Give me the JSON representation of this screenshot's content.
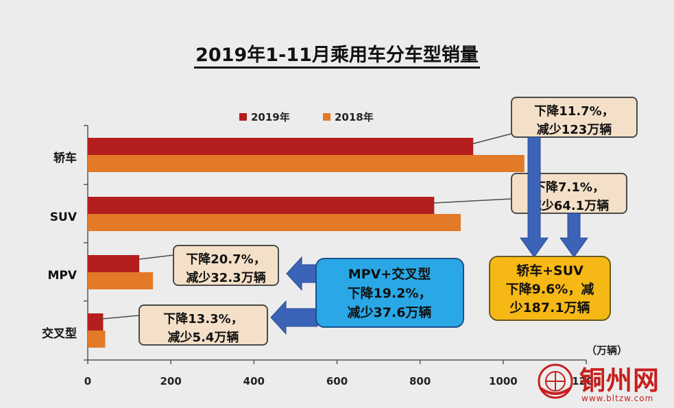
{
  "chart_data": {
    "type": "bar",
    "orientation": "horizontal",
    "title": "2019年1-11月乘用车分车型销量",
    "unit_label": "（万辆）",
    "categories": [
      "轿车",
      "SUV",
      "MPV",
      "交叉型"
    ],
    "series": [
      {
        "name": "2019年",
        "color": "#b41e1e",
        "values": [
          928,
          834,
          124,
          37
        ]
      },
      {
        "name": "2018年",
        "color": "#e27a28",
        "values": [
          1051,
          898,
          157,
          42
        ]
      }
    ],
    "xlim": [
      0,
      1200
    ],
    "xticks": [
      "0",
      "200",
      "400",
      "600",
      "800",
      "1000",
      "1200"
    ],
    "grid": false,
    "legend_position": "top"
  },
  "annotations": {
    "sedan_1": "下降11.7%，",
    "sedan_2": "减少123万辆",
    "suv_1": "下降7.1%，",
    "suv_2": "减少64.1万辆",
    "mpv_1": "下降20.7%，",
    "mpv_2": "减少32.3万辆",
    "cross_1": "下降13.3%，",
    "cross_2": "减少5.4万辆",
    "combo_mpv_1": "MPV+交叉型",
    "combo_mpv_2": "下降19.2%，",
    "combo_mpv_3": "减少37.6万辆",
    "combo_suv_1": "轿车+SUV",
    "combo_suv_2": "下降9.6%，减",
    "combo_suv_3": "少187.1万辆"
  },
  "watermark": {
    "text": "铜州网",
    "url": "www.bltzw.com"
  },
  "colors": {
    "callout_fill": "#f4e0c8",
    "callout_border": "#4a4a4a",
    "blue_box": "#2aa7e6",
    "yellow_box": "#f6b814",
    "arrow_blue": "#3b63b8",
    "background": "#ececec"
  }
}
